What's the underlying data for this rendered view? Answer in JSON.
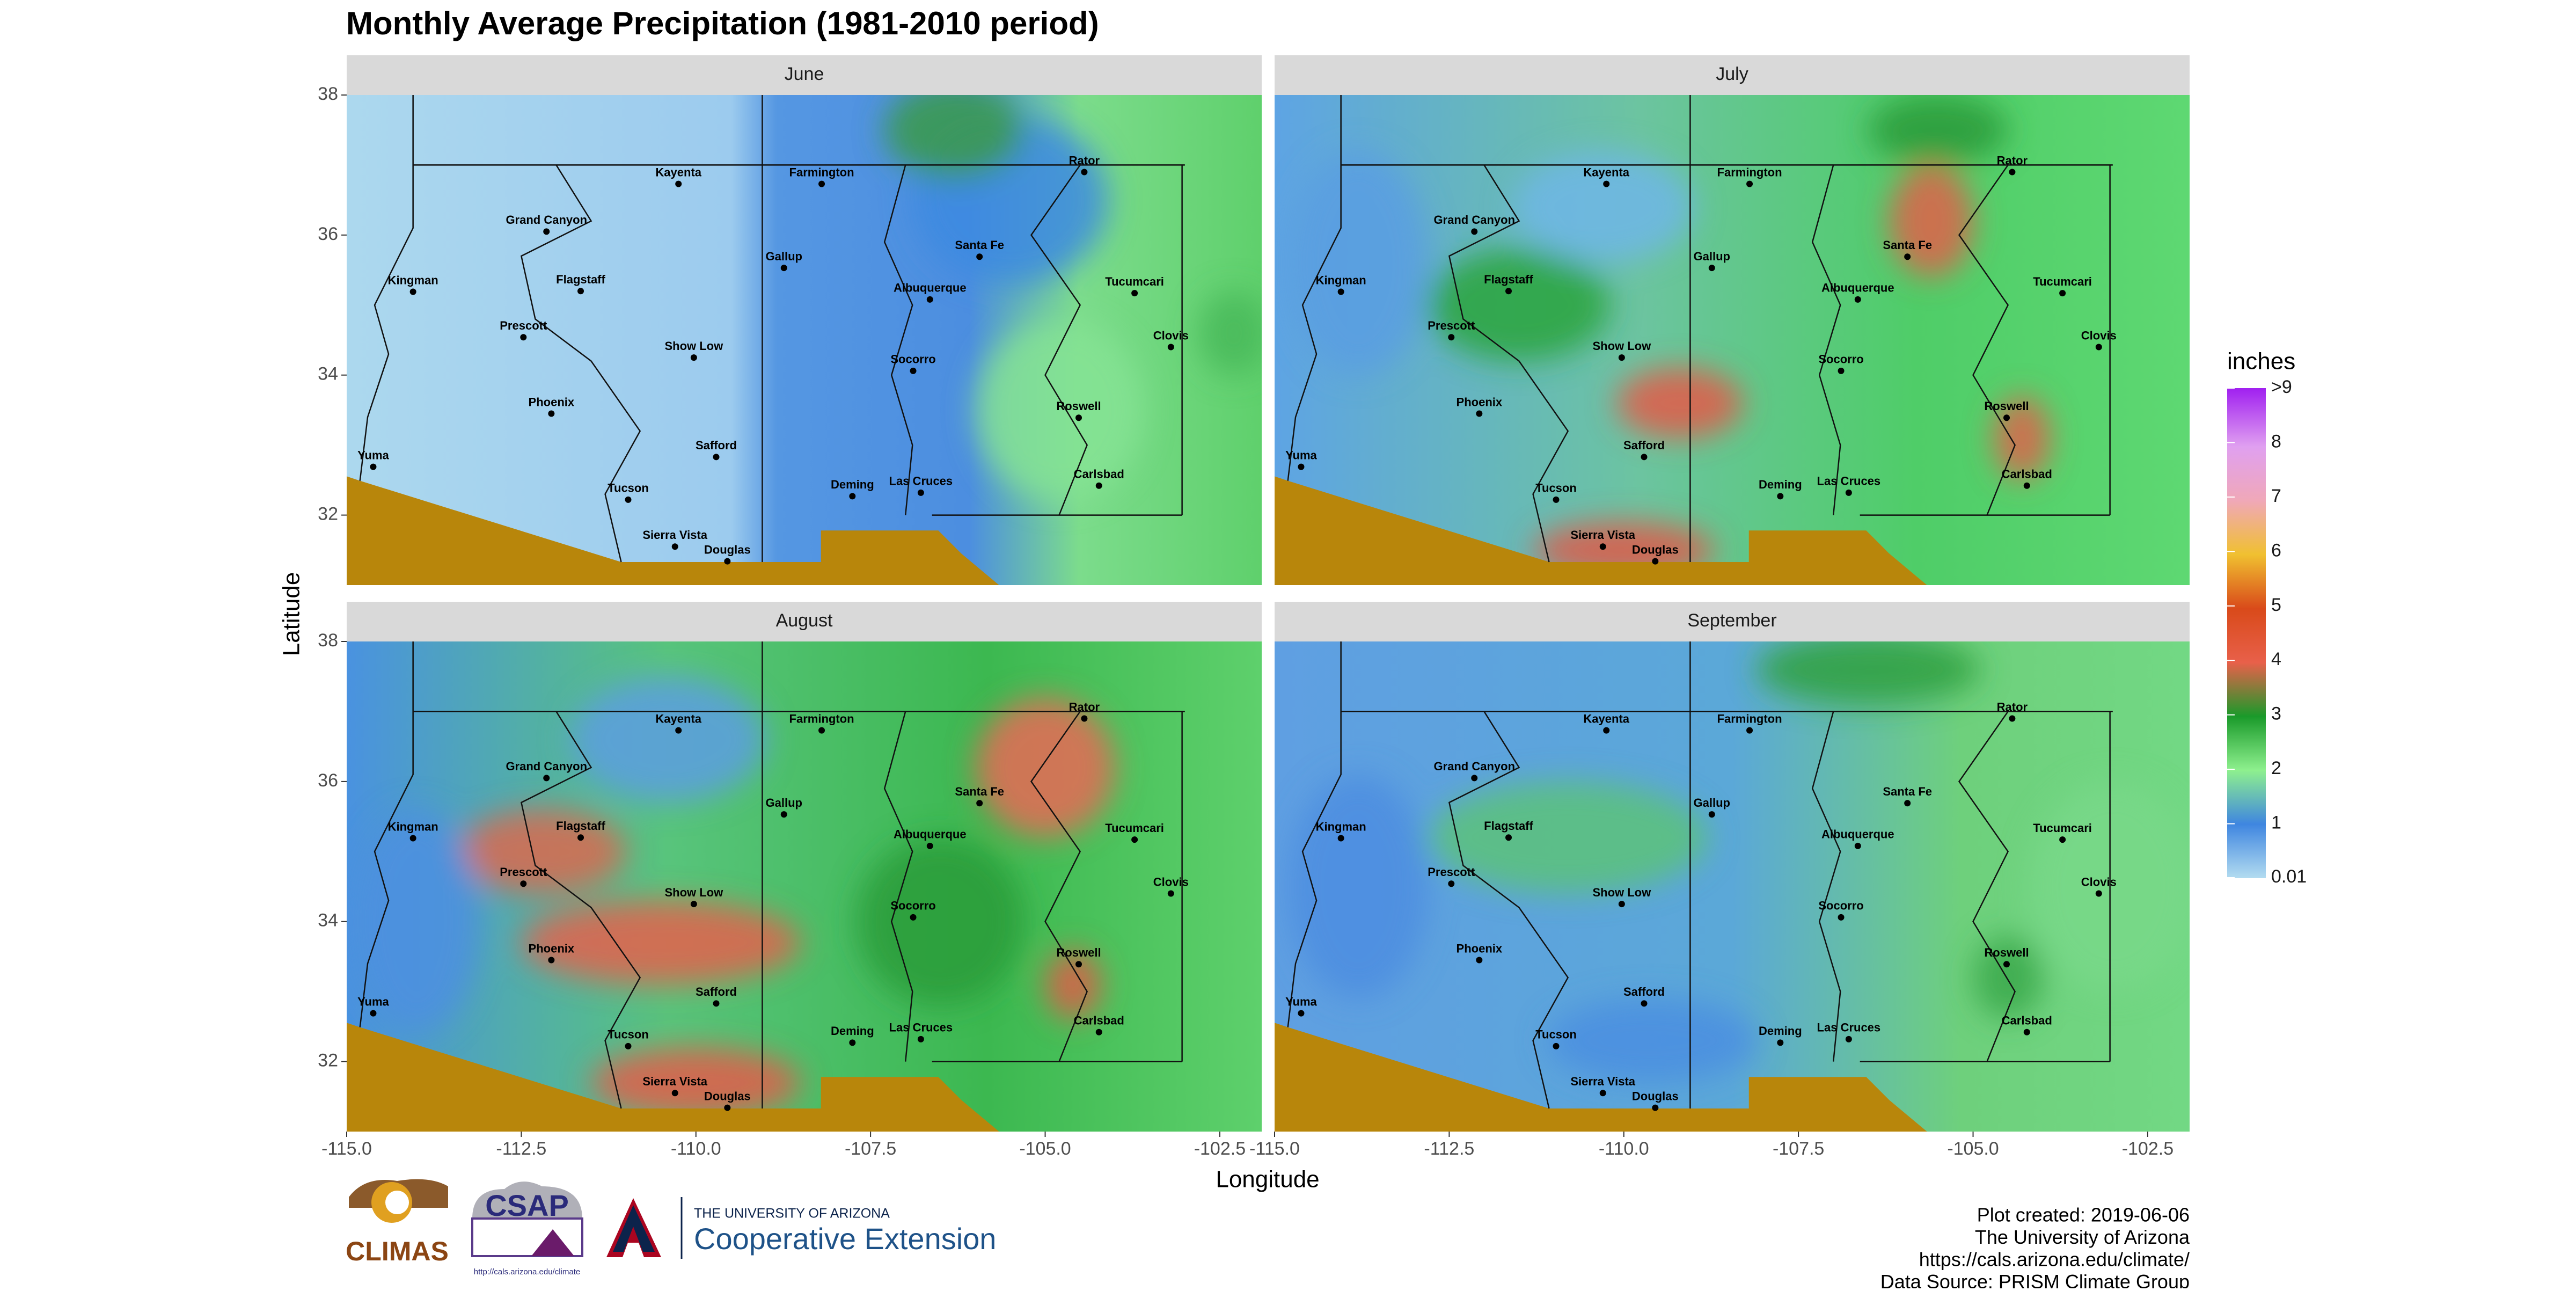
{
  "chart_data": {
    "type": "map",
    "title": "Monthly Average Precipitation (1981-2010 period)",
    "x_label": "Longitude",
    "y_label": "Latitude",
    "panels": [
      "June",
      "July",
      "August",
      "September"
    ],
    "xlim": [
      -115,
      -101.9
    ],
    "ylim": [
      31.0,
      38.0
    ],
    "xticks": [
      {
        "value": -115,
        "label": "-115.0"
      },
      {
        "value": -112.5,
        "label": "-112.5"
      },
      {
        "value": -110,
        "label": "-110.0"
      },
      {
        "value": -107.5,
        "label": "-107.5"
      },
      {
        "value": -105,
        "label": "-105.0"
      },
      {
        "value": -102.5,
        "label": "-102.5"
      }
    ],
    "yticks": [
      32,
      34,
      36,
      38
    ],
    "legend": {
      "title": "inches",
      "lim": [
        0,
        9
      ],
      "ticks": [
        0.01,
        1,
        2,
        3,
        4,
        5,
        6,
        7,
        8,
        {
          "value": 9,
          "label": ">9"
        }
      ]
    },
    "cities": [
      {
        "name": "Kayenta",
        "lon": -110.25,
        "lat": 36.73
      },
      {
        "name": "Farmington",
        "lon": -108.2,
        "lat": 36.73
      },
      {
        "name": "Rator",
        "lon": -104.44,
        "lat": 36.9
      },
      {
        "name": "Grand Canyon",
        "lon": -112.14,
        "lat": 36.05
      },
      {
        "name": "Santa Fe",
        "lon": -105.94,
        "lat": 35.69
      },
      {
        "name": "Kingman",
        "lon": -114.05,
        "lat": 35.19
      },
      {
        "name": "Flagstaff",
        "lon": -111.65,
        "lat": 35.2
      },
      {
        "name": "Gallup",
        "lon": -108.74,
        "lat": 35.53
      },
      {
        "name": "Albuquerque",
        "lon": -106.65,
        "lat": 35.08
      },
      {
        "name": "Tucumcari",
        "lon": -103.72,
        "lat": 35.17
      },
      {
        "name": "Prescott",
        "lon": -112.47,
        "lat": 34.54
      },
      {
        "name": "Show Low",
        "lon": -110.03,
        "lat": 34.25
      },
      {
        "name": "Clovis",
        "lon": -103.2,
        "lat": 34.4
      },
      {
        "name": "Phoenix",
        "lon": -112.07,
        "lat": 33.45
      },
      {
        "name": "Socorro",
        "lon": -106.89,
        "lat": 34.06
      },
      {
        "name": "Roswell",
        "lon": -104.52,
        "lat": 33.39
      },
      {
        "name": "Safford",
        "lon": -109.71,
        "lat": 32.83
      },
      {
        "name": "Yuma",
        "lon": -114.62,
        "lat": 32.69
      },
      {
        "name": "Tucson",
        "lon": -110.97,
        "lat": 32.22
      },
      {
        "name": "Deming",
        "lon": -107.76,
        "lat": 32.27
      },
      {
        "name": "Las Cruces",
        "lon": -106.78,
        "lat": 32.32
      },
      {
        "name": "Carlsbad",
        "lon": -104.23,
        "lat": 32.42
      },
      {
        "name": "Sierra Vista",
        "lon": -110.3,
        "lat": 31.55
      },
      {
        "name": "Douglas",
        "lon": -109.55,
        "lat": 31.34
      }
    ],
    "footer": [
      "Plot created: 2019-06-06",
      "The University of Arizona",
      "https://cals.arizona.edu/climate/",
      "Data Source: PRISM Climate Group"
    ],
    "logos": {
      "climas": "CLIMAS",
      "csap": "CSAP",
      "csap_url": "http://cals.arizona.edu/climate",
      "university": "THE UNIVERSITY OF ARIZONA",
      "extension": "Cooperative Extension"
    }
  }
}
